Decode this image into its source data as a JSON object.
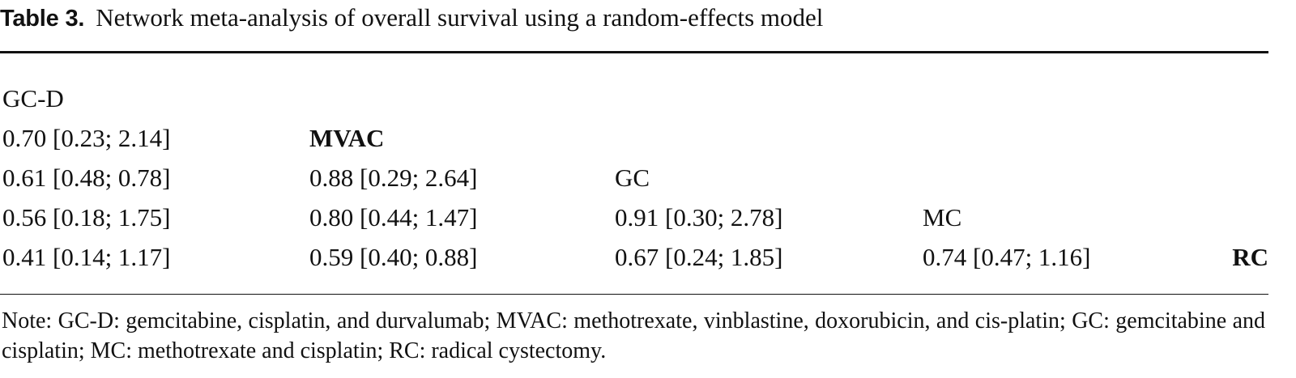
{
  "caption": {
    "label": "Table 3.",
    "text": "Network meta-analysis of overall survival using a random-effects model"
  },
  "table": {
    "rows": [
      [
        "GC-D",
        "",
        "",
        "",
        ""
      ],
      [
        "0.70 [0.23; 2.14]",
        "MVAC",
        "",
        "",
        ""
      ],
      [
        "0.61 [0.48; 0.78]",
        "0.88 [0.29; 2.64]",
        "GC",
        "",
        ""
      ],
      [
        "0.56 [0.18; 1.75]",
        "0.80 [0.44; 1.47]",
        "0.91 [0.30; 2.78]",
        "MC",
        ""
      ],
      [
        "0.41 [0.14; 1.17]",
        "0.59 [0.40; 0.88]",
        "0.67 [0.24; 1.85]",
        "0.74 [0.47; 1.16]",
        "RC"
      ]
    ]
  },
  "note": "Note: GC-D: gemcitabine, cisplatin, and durvalumab; MVAC: methotrexate, vinblastine, doxorubicin, and cis-platin; GC: gemcitabine and cisplatin; MC: methotrexate and cisplatin; RC: radical cystectomy."
}
